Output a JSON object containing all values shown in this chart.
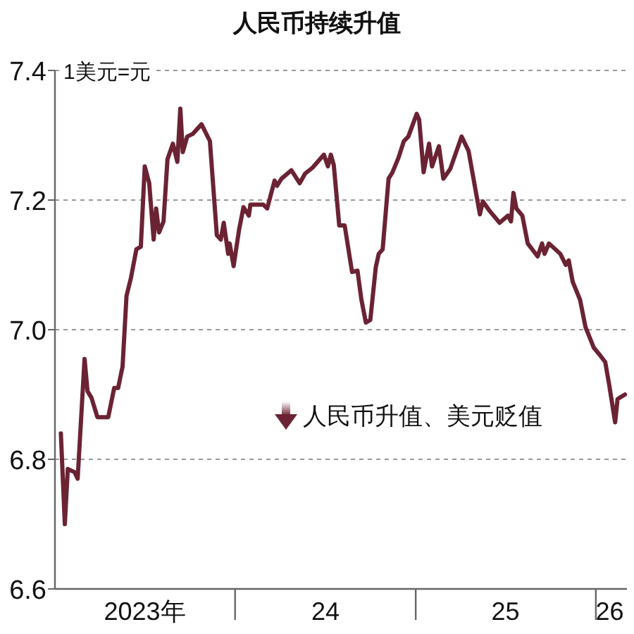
{
  "chart_data": {
    "type": "line",
    "title": "人民币持续升值",
    "ylabel": "1美元=元",
    "x": [
      "2023-01-13",
      "2023-01-21",
      "2023-01-27",
      "2023-02-10",
      "2023-02-16",
      "2023-03-02",
      "2023-03-08",
      "2023-03-16",
      "2023-03-28",
      "2023-04-19",
      "2023-05-01",
      "2023-05-09",
      "2023-05-18",
      "2023-05-26",
      "2023-06-04",
      "2023-06-15",
      "2023-06-24",
      "2023-07-02",
      "2023-07-11",
      "2023-07-20",
      "2023-07-25",
      "2023-07-31",
      "2023-08-09",
      "2023-08-17",
      "2023-08-28",
      "2023-09-06",
      "2023-09-12",
      "2023-09-17",
      "2023-09-26",
      "2023-10-07",
      "2023-10-25",
      "2023-11-11",
      "2023-11-25",
      "2023-12-03",
      "2023-12-09",
      "2023-12-18",
      "2023-12-21",
      "2023-12-29",
      "2024-01-09",
      "2024-01-18",
      "2024-01-29",
      "2024-02-01",
      "2024-02-27",
      "2024-03-06",
      "2024-03-21",
      "2024-03-26",
      "2024-04-04",
      "2024-04-24",
      "2024-05-11",
      "2024-05-22",
      "2024-06-06",
      "2024-06-29",
      "2024-07-07",
      "2024-07-13",
      "2024-07-19",
      "2024-07-30",
      "2024-08-10",
      "2024-08-25",
      "2024-09-05",
      "2024-09-13",
      "2024-09-22",
      "2024-10-01",
      "2024-10-12",
      "2024-10-18",
      "2024-10-26",
      "2024-11-07",
      "2024-11-15",
      "2024-11-27",
      "2024-12-08",
      "2024-12-17",
      "2025-01-03",
      "2025-01-08",
      "2025-01-17",
      "2025-01-28",
      "2025-02-03",
      "2025-02-17",
      "2025-02-26",
      "2025-03-12",
      "2025-04-04",
      "2025-04-18",
      "2025-05-11",
      "2025-05-17",
      "2025-05-31",
      "2025-06-20",
      "2025-07-07",
      "2025-07-13",
      "2025-07-18",
      "2025-07-24",
      "2025-08-05",
      "2025-08-16",
      "2025-09-05",
      "2025-09-14",
      "2025-09-19",
      "2025-09-28",
      "2025-10-21",
      "2025-11-01",
      "2025-11-07",
      "2025-11-15",
      "2025-11-30",
      "2025-12-11",
      "2025-12-28",
      "2026-01-11",
      "2026-01-20",
      "2026-01-28",
      "2026-02-09",
      "2026-02-14",
      "2026-03-01"
    ],
    "series": [
      {
        "color": "#6b2333",
        "values": [
          6.84,
          6.7,
          6.785,
          6.78,
          6.77,
          6.955,
          6.905,
          6.895,
          6.865,
          6.865,
          6.91,
          6.91,
          6.943,
          7.052,
          7.08,
          7.124,
          7.128,
          7.252,
          7.226,
          7.139,
          7.187,
          7.15,
          7.167,
          7.263,
          7.287,
          7.259,
          7.341,
          7.274,
          7.298,
          7.302,
          7.317,
          7.291,
          7.146,
          7.139,
          7.165,
          7.117,
          7.133,
          7.098,
          7.154,
          7.189,
          7.176,
          7.193,
          7.193,
          7.187,
          7.23,
          7.222,
          7.233,
          7.246,
          7.226,
          7.241,
          7.25,
          7.27,
          7.252,
          7.27,
          7.254,
          7.161,
          7.161,
          7.089,
          7.091,
          7.046,
          7.011,
          7.015,
          7.096,
          7.117,
          7.124,
          7.233,
          7.243,
          7.265,
          7.291,
          7.298,
          7.333,
          7.324,
          7.243,
          7.287,
          7.252,
          7.283,
          7.233,
          7.248,
          7.298,
          7.276,
          7.178,
          7.198,
          7.183,
          7.165,
          7.176,
          7.167,
          7.211,
          7.187,
          7.176,
          7.133,
          7.113,
          7.133,
          7.117,
          7.133,
          7.117,
          7.1,
          7.107,
          7.074,
          7.046,
          7.004,
          6.972,
          6.959,
          6.95,
          6.915,
          6.857,
          6.893,
          6.9
        ]
      }
    ],
    "xlim": [
      "2023-01-01",
      "2026-03-05"
    ],
    "xticks": [
      {
        "value": "2023-07-02",
        "label": "2023年"
      },
      {
        "value": "2024-01-01",
        "label": null
      },
      {
        "value": "2024-07-02",
        "label": "24"
      },
      {
        "value": "2025-01-01",
        "label": null
      },
      {
        "value": "2025-07-02",
        "label": "25"
      },
      {
        "value": "2026-01-01",
        "label": null
      },
      {
        "value": "2026-01-29",
        "label": "26"
      }
    ],
    "ylim": [
      6.6,
      7.4
    ],
    "yticks": [
      6.6,
      6.8,
      {
        "value": 7,
        "label": "7.0"
      },
      7.2,
      7.4
    ],
    "grid": "y",
    "line_style": "solid",
    "marker": "none",
    "annotations": [
      "人民币升值、美元贬值"
    ]
  }
}
